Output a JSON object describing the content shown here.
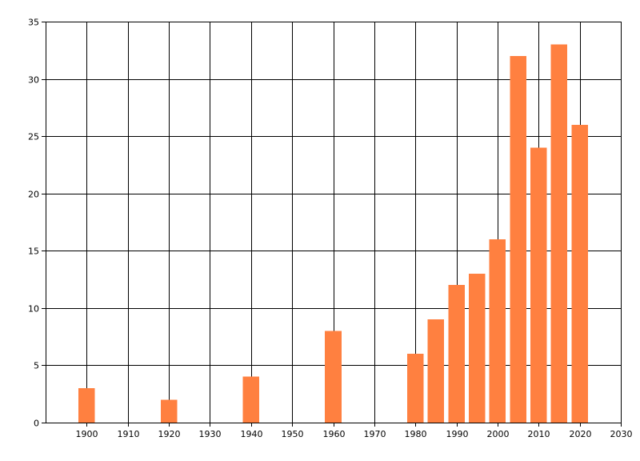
{
  "chart_data": {
    "type": "bar",
    "title": "",
    "xlabel": "",
    "ylabel": "",
    "grid": true,
    "bar_color": "#FF8040",
    "xlim": [
      1890,
      2030
    ],
    "ylim": [
      0,
      35
    ],
    "x_ticks": [
      1900,
      1910,
      1920,
      1930,
      1940,
      1950,
      1960,
      1970,
      1980,
      1990,
      2000,
      2010,
      2020,
      2030
    ],
    "y_ticks": [
      0,
      5,
      10,
      15,
      20,
      25,
      30,
      35
    ],
    "bar_width": 4,
    "points": [
      {
        "x": 1900,
        "y": 3
      },
      {
        "x": 1920,
        "y": 2
      },
      {
        "x": 1940,
        "y": 4
      },
      {
        "x": 1960,
        "y": 8
      },
      {
        "x": 1980,
        "y": 6
      },
      {
        "x": 1985,
        "y": 9
      },
      {
        "x": 1990,
        "y": 12
      },
      {
        "x": 1995,
        "y": 13
      },
      {
        "x": 2000,
        "y": 16
      },
      {
        "x": 2005,
        "y": 32
      },
      {
        "x": 2010,
        "y": 24
      },
      {
        "x": 2015,
        "y": 33
      },
      {
        "x": 2020,
        "y": 26
      }
    ]
  }
}
